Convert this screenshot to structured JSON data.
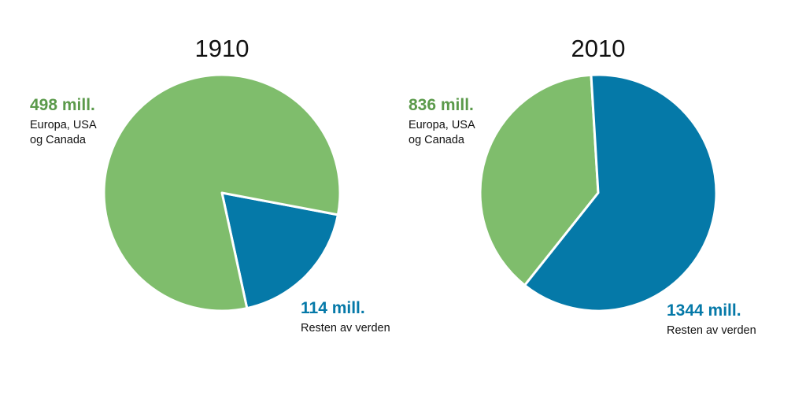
{
  "colors": {
    "europe": "#7fbd6c",
    "rest": "#0579a8",
    "europe_label": "#5b9a4b",
    "rest_label": "#0579a8"
  },
  "chart_data": [
    {
      "type": "pie",
      "title": "1910",
      "slices": [
        {
          "label": "Resten av verden",
          "value": 114,
          "value_label": "114 mill.",
          "color": "#0579a8"
        },
        {
          "label": "Europa, USA\nog Canada",
          "value": 498,
          "value_label": "498 mill.",
          "color": "#7fbd6c"
        }
      ]
    },
    {
      "type": "pie",
      "title": "2010",
      "slices": [
        {
          "label": "Europa, USA\nog Canada",
          "value": 836,
          "value_label": "836 mill.",
          "color": "#7fbd6c"
        },
        {
          "label": "Resten av verden",
          "value": 1344,
          "value_label": "1344 mill.",
          "color": "#0579a8"
        }
      ]
    }
  ]
}
